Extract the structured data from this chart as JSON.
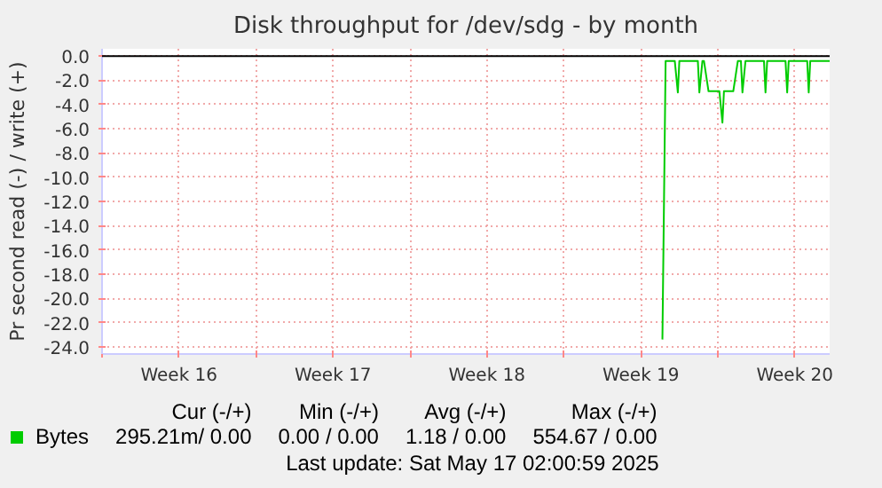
{
  "chart_data": {
    "type": "line",
    "title": "Disk throughput for /dev/sdg - by month",
    "ylabel": "Pr second read (-) / write (+)",
    "x": [
      "2025-05-09T11:30",
      "2025-05-09T15:00",
      "2025-05-10T01:00",
      "2025-05-10T04:20",
      "2025-05-10T06:00",
      "2025-05-11T02:10",
      "2025-05-11T03:50",
      "2025-05-11T07:10",
      "2025-05-11T08:50",
      "2025-05-11T13:50",
      "2025-05-12T01:40",
      "2025-05-12T05:00",
      "2025-05-12T06:40",
      "2025-05-12T16:50",
      "2025-05-12T21:50",
      "2025-05-13T01:10",
      "2025-05-13T02:50",
      "2025-05-13T06:10",
      "2025-05-14T02:20",
      "2025-05-14T04:00",
      "2025-05-14T05:50",
      "2025-05-15T01:50",
      "2025-05-15T03:40",
      "2025-05-15T05:20",
      "2025-05-16T01:30",
      "2025-05-16T03:10",
      "2025-05-16T04:50",
      "2025-05-17T02:00"
    ],
    "series": [
      {
        "name": "Bytes",
        "color": "#00cc00",
        "values": [
          -23.4,
          -0.4,
          -0.4,
          -3.0,
          -0.4,
          -0.4,
          -3.0,
          -0.4,
          -0.4,
          -2.9,
          -2.9,
          -5.5,
          -2.9,
          -2.9,
          -0.4,
          -0.4,
          -3.0,
          -0.4,
          -0.4,
          -3.0,
          -0.4,
          -0.4,
          -3.0,
          -0.4,
          -0.4,
          -3.0,
          -0.4,
          -0.4
        ]
      }
    ],
    "xlim": [
      "2025-04-14",
      "2025-05-17T02:00"
    ],
    "xticks": [
      {
        "value": "2025-04-14",
        "label": null
      },
      {
        "value": "2025-04-17T12:00",
        "label": "Week 16"
      },
      {
        "value": "2025-04-21",
        "label": null
      },
      {
        "value": "2025-04-24T12:00",
        "label": "Week 17"
      },
      {
        "value": "2025-04-28",
        "label": null
      },
      {
        "value": "2025-05-01T12:00",
        "label": "Week 18"
      },
      {
        "value": "2025-05-05",
        "label": null
      },
      {
        "value": "2025-05-08T12:00",
        "label": "Week 19"
      },
      {
        "value": "2025-05-12",
        "label": null
      },
      {
        "value": "2025-05-15T12:00",
        "label": "Week 20"
      }
    ],
    "ylim": [
      -24.6,
      0.6
    ],
    "yticks": [
      {
        "value": 0,
        "label": "0.0"
      },
      {
        "value": -2,
        "label": "-2.0"
      },
      {
        "value": -4,
        "label": "-4.0"
      },
      {
        "value": -6,
        "label": "-6.0"
      },
      {
        "value": -8,
        "label": "-8.0"
      },
      {
        "value": -10,
        "label": "-10.0"
      },
      {
        "value": -12,
        "label": "-12.0"
      },
      {
        "value": -14,
        "label": "-14.0"
      },
      {
        "value": -16,
        "label": "-16.0"
      },
      {
        "value": -18,
        "label": "-18.0"
      },
      {
        "value": -20,
        "label": "-20.0"
      },
      {
        "value": -22,
        "label": "-22.0"
      },
      {
        "value": -24,
        "label": "-24.0"
      }
    ],
    "ref_lines": [
      {
        "axis": "y",
        "value": 0,
        "color": "#000000"
      }
    ],
    "annotations": [
      "Cur (-/+)",
      "Min (-/+)",
      "Avg (-/+)",
      "Max (-/+)",
      "295.21m/  0.00",
      "0.00 /  0.00",
      "1.18 /  0.00",
      "554.67 /  0.00",
      "Last update: Sat May 17 02:00:59 2025"
    ],
    "grid": true,
    "legend": "bottom",
    "marker": "none",
    "line_style": "solid"
  }
}
